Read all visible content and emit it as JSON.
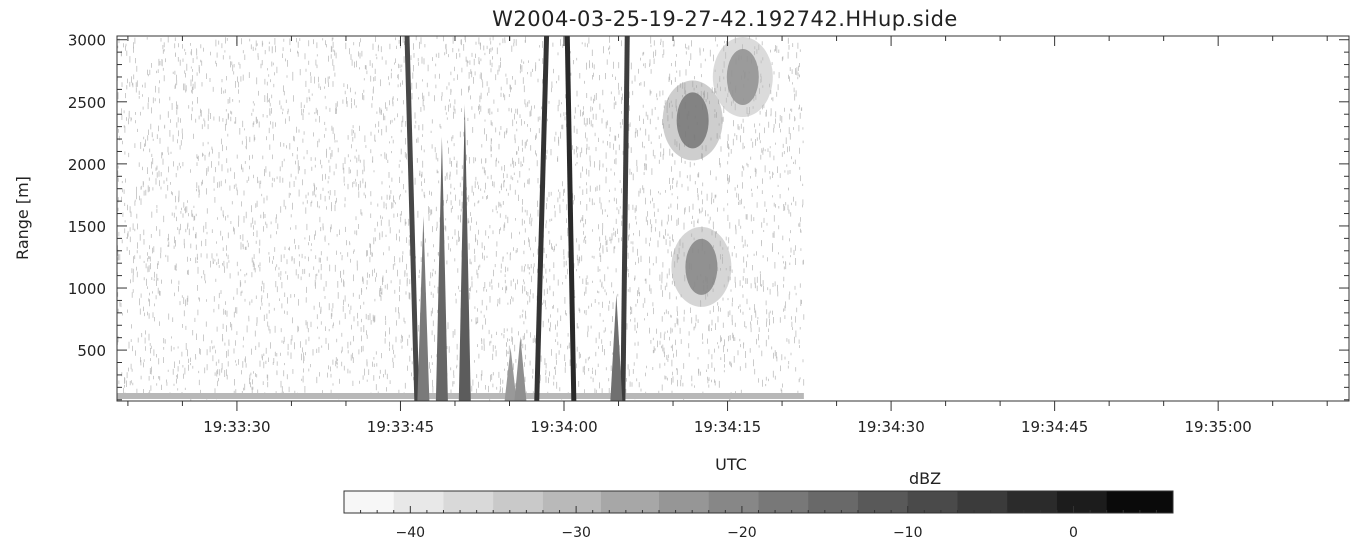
{
  "chart_data": {
    "type": "heatmap",
    "title": "W2004-03-25-19-27-42.192742.HHup.side",
    "xlabel": "UTC",
    "ylabel": "Range [m]",
    "x_range": [
      "19:33:19",
      "19:35:12"
    ],
    "x_ticks": [
      "19:33:30",
      "19:33:45",
      "19:34:00",
      "19:34:15",
      "19:34:30",
      "19:34:45",
      "19:35:00"
    ],
    "ylim": [
      90,
      3030
    ],
    "y_ticks": [
      500,
      1000,
      1500,
      2000,
      2500,
      3000
    ],
    "data_extent_x_end": "19:34:22",
    "colorbar": {
      "label": "dBZ",
      "vmin": -44,
      "vmax": 6,
      "ticks": [
        -40,
        -30,
        -20,
        -10,
        0
      ],
      "levels": [
        -44,
        -41,
        -38,
        -35,
        -32,
        -28.5,
        -25,
        -22,
        -19,
        -16,
        -13,
        -10,
        -7,
        -4,
        -1,
        2,
        6
      ]
    },
    "features": [
      {
        "kind": "streak",
        "x": [
          "19:33:45.6",
          "19:33:46.5"
        ],
        "y": [
          3030,
          90
        ],
        "dbz": -8
      },
      {
        "kind": "spike",
        "x_center": "19:33:47.1",
        "y_top": 1580,
        "dbz": -18
      },
      {
        "kind": "spike",
        "x_center": "19:33:48.8",
        "y_top": 2220,
        "dbz": -14
      },
      {
        "kind": "spike",
        "x_center": "19:33:50.9",
        "y_top": 2480,
        "dbz": -12
      },
      {
        "kind": "spike",
        "x_center": "19:33:55.1",
        "y_top": 520,
        "dbz": -24
      },
      {
        "kind": "spike",
        "x_center": "19:33:56.0",
        "y_top": 610,
        "dbz": -22
      },
      {
        "kind": "streak",
        "x": [
          "19:33:58.4",
          "19:33:57.5"
        ],
        "y": [
          3030,
          90
        ],
        "dbz": -4
      },
      {
        "kind": "streak",
        "x": [
          "19:34:00.3",
          "19:34:00.9"
        ],
        "y": [
          3030,
          90
        ],
        "dbz": -2
      },
      {
        "kind": "streak",
        "x": [
          "19:34:05.8",
          "19:34:05.4"
        ],
        "y": [
          3030,
          90
        ],
        "dbz": -6
      },
      {
        "kind": "spike",
        "x_center": "19:34:04.8",
        "y_top": 950,
        "dbz": -16
      },
      {
        "kind": "cloud",
        "x_center": "19:34:11.8",
        "y_center": 2350,
        "dbz": -17
      },
      {
        "kind": "cloud",
        "x_center": "19:34:12.6",
        "y_center": 1170,
        "dbz": -20
      },
      {
        "kind": "cloud",
        "x_center": "19:34:16.4",
        "y_center": 2700,
        "dbz": -22
      }
    ]
  }
}
